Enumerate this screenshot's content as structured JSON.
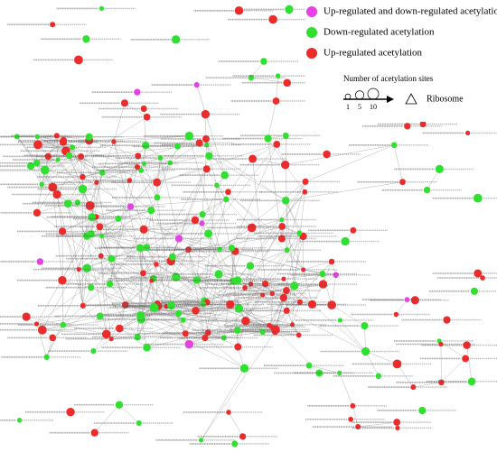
{
  "legend": {
    "items": [
      {
        "label": "Up-regulated and down-regulated acetylation sites both occur",
        "color": "#e542e5"
      },
      {
        "label": "Down-regulated acetylation",
        "color": "#2fe02f"
      },
      {
        "label": "Up-regulated acetylation",
        "color": "#ec2b2b"
      }
    ],
    "size_title": "Number of acetylation sites",
    "size_ticks": [
      1,
      5,
      10
    ],
    "shape_label": "Ribosome",
    "shape_label_color": "#ec2b2b"
  }
}
